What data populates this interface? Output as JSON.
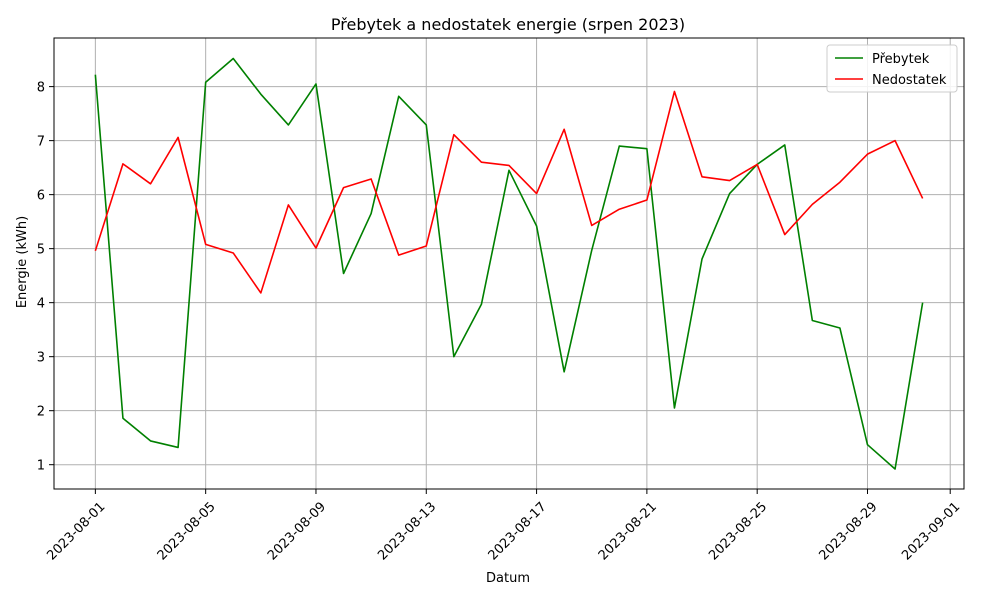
{
  "chart_data": {
    "type": "line",
    "title": "Přebytek a nedostatek energie (srpen 2023)",
    "xlabel": "Datum",
    "ylabel": "Energie (kWh)",
    "x": [
      "2023-08-01",
      "2023-08-02",
      "2023-08-03",
      "2023-08-04",
      "2023-08-05",
      "2023-08-06",
      "2023-08-07",
      "2023-08-08",
      "2023-08-09",
      "2023-08-10",
      "2023-08-11",
      "2023-08-12",
      "2023-08-13",
      "2023-08-14",
      "2023-08-15",
      "2023-08-16",
      "2023-08-17",
      "2023-08-18",
      "2023-08-19",
      "2023-08-20",
      "2023-08-21",
      "2023-08-22",
      "2023-08-23",
      "2023-08-24",
      "2023-08-25",
      "2023-08-26",
      "2023-08-27",
      "2023-08-28",
      "2023-08-29",
      "2023-08-30",
      "2023-08-31"
    ],
    "series": [
      {
        "name": "Přebytek",
        "color": "#008000",
        "values": [
          8.22,
          1.86,
          1.44,
          1.32,
          8.08,
          8.52,
          7.86,
          7.29,
          8.05,
          4.54,
          5.65,
          7.82,
          7.29,
          3.0,
          3.97,
          6.45,
          5.42,
          2.72,
          4.97,
          6.9,
          6.85,
          2.05,
          4.81,
          6.02,
          6.56,
          6.92,
          3.67,
          3.53,
          1.37,
          0.92,
          4.0
        ]
      },
      {
        "name": "Nedostatek",
        "color": "#ff0000",
        "values": [
          4.96,
          6.57,
          6.2,
          7.06,
          5.08,
          4.92,
          4.18,
          5.81,
          5.01,
          6.13,
          6.29,
          4.88,
          5.05,
          7.11,
          6.6,
          6.54,
          6.02,
          7.21,
          5.43,
          5.73,
          5.9,
          7.91,
          6.33,
          6.26,
          6.56,
          5.26,
          5.82,
          6.23,
          6.75,
          7.0,
          5.93
        ]
      }
    ],
    "xticks": [
      "2023-08-01",
      "2023-08-05",
      "2023-08-09",
      "2023-08-13",
      "2023-08-17",
      "2023-08-21",
      "2023-08-25",
      "2023-08-29",
      "2023-09-01"
    ],
    "yticks": [
      1,
      2,
      3,
      4,
      5,
      6,
      7,
      8
    ],
    "xlim": [
      "2023-07-30T12:00",
      "2023-09-01T12:00"
    ],
    "ylim": [
      0.55,
      8.9
    ],
    "grid": true,
    "legend_position": "top-right"
  }
}
